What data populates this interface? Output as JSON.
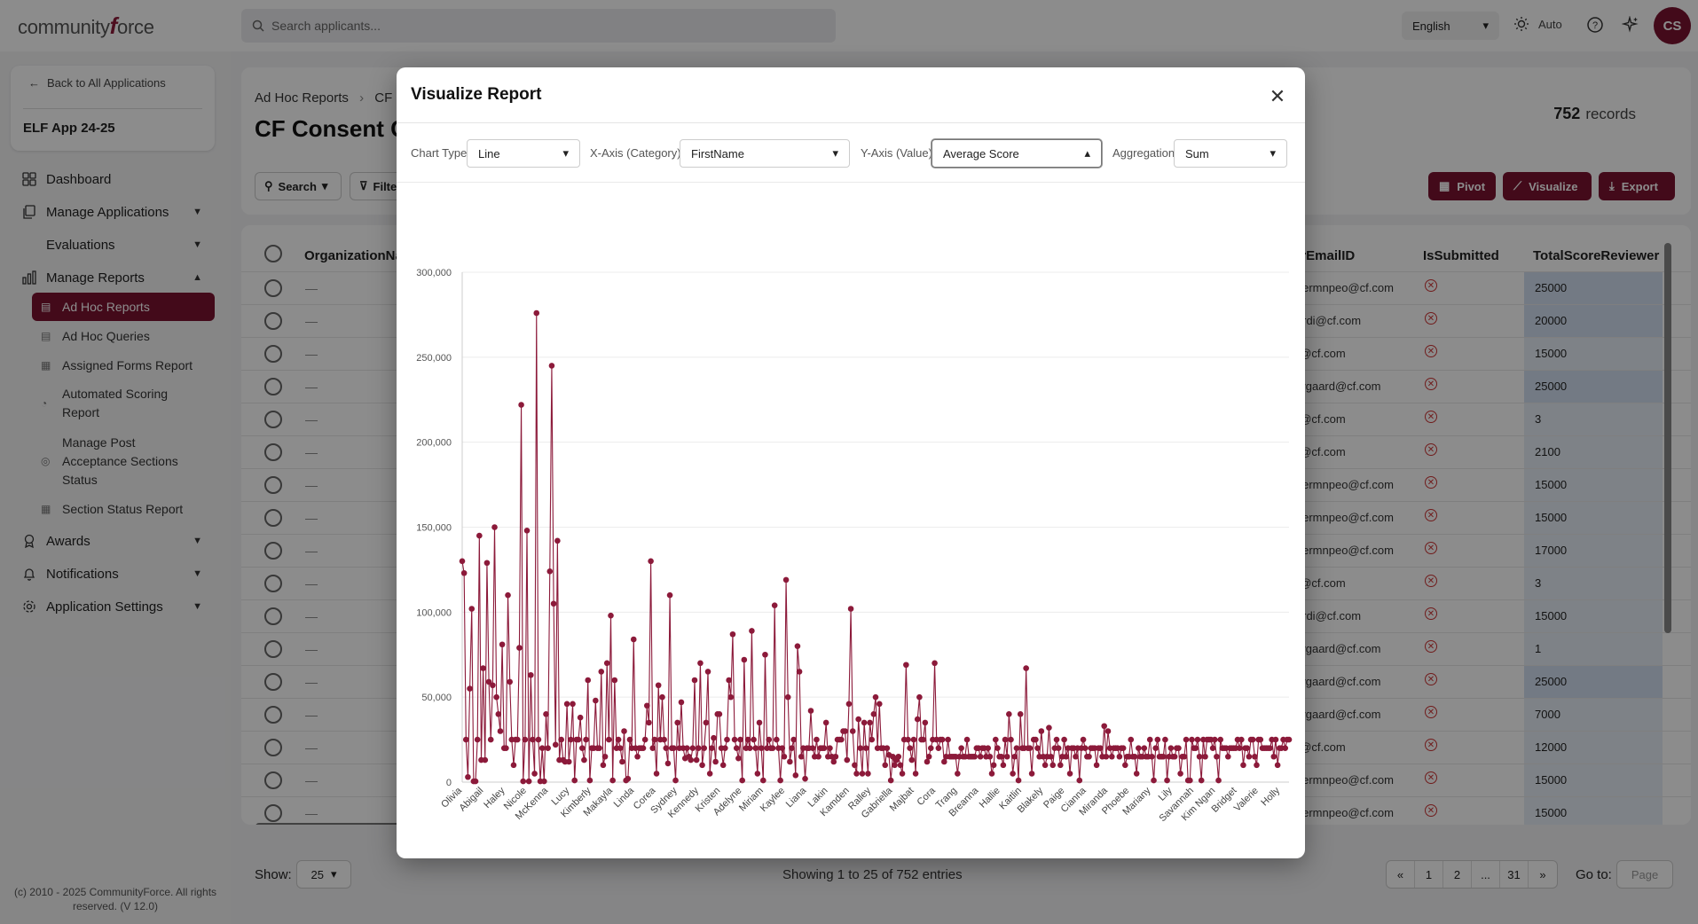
{
  "header": {
    "logo_text_a": "community",
    "logo_text_f": "f",
    "logo_text_b": "orce",
    "search_placeholder": "Search applicants...",
    "language": "English",
    "theme_mode": "Auto",
    "avatar_initials": "CS"
  },
  "sidebar": {
    "back_label": "Back to All Applications",
    "app_name": "ELF App 24-25",
    "items": [
      {
        "label": "Dashboard",
        "icon": "grid-icon"
      },
      {
        "label": "Manage Applications",
        "icon": "copy-icon"
      },
      {
        "label": "Evaluations",
        "icon": "star-icon"
      },
      {
        "label": "Manage Reports",
        "icon": "bar-chart-icon"
      },
      {
        "label": "Awards",
        "icon": "award-icon"
      },
      {
        "label": "Notifications",
        "icon": "bell-icon"
      },
      {
        "label": "Application Settings",
        "icon": "gear-icon"
      }
    ],
    "report_subitems": [
      {
        "label": "Ad Hoc Reports"
      },
      {
        "label": "Ad Hoc Queries"
      },
      {
        "label": "Assigned Forms Report"
      },
      {
        "label": "Automated Scoring Report"
      },
      {
        "label": "Manage Post Acceptance Sections Status"
      },
      {
        "label": "Section Status Report"
      }
    ],
    "copyright": "(c) 2010 - 2025 CommunityForce. All rights reserved. (V 12.0)"
  },
  "main": {
    "breadcrumb_root": "Ad Hoc Reports",
    "breadcrumb_current": "CF C",
    "title": "CF Consent Gi",
    "record_count": "752",
    "record_label": "records",
    "search_button": "Search",
    "filter_button": "Filte",
    "pivot_button": "Pivot",
    "visualize_button": "Visualize",
    "export_button": "Export",
    "columns": {
      "org": "OrganizationNa",
      "email": "erEmailID",
      "submitted": "IsSubmitted",
      "score": "TotalScoreReviewer"
    },
    "rows": [
      {
        "org": "—",
        "email": "hiermnpeo@cf.com",
        "score": "25000"
      },
      {
        "org": "—",
        "email": "birdi@cf.com",
        "score": "20000"
      },
      {
        "org": "—",
        "email": "n@cf.com",
        "score": "15000"
      },
      {
        "org": "—",
        "email": "nygaard@cf.com",
        "score": "25000"
      },
      {
        "org": "—",
        "email": "n@cf.com",
        "score": "3"
      },
      {
        "org": "—",
        "email": "n@cf.com",
        "score": "2100"
      },
      {
        "org": "—",
        "email": "hiermnpeo@cf.com",
        "score": "15000"
      },
      {
        "org": "—",
        "email": "hiermnpeo@cf.com",
        "score": "15000"
      },
      {
        "org": "—",
        "email": "hiermnpeo@cf.com",
        "score": "17000"
      },
      {
        "org": "—",
        "email": "n@cf.com",
        "score": "3"
      },
      {
        "org": "—",
        "email": "birdi@cf.com",
        "score": "15000"
      },
      {
        "org": "—",
        "email": "nygaard@cf.com",
        "score": "1"
      },
      {
        "org": "—",
        "email": "nygaard@cf.com",
        "score": "25000"
      },
      {
        "org": "—",
        "email": "nygaard@cf.com",
        "score": "7000"
      },
      {
        "org": "—",
        "email": "n@cf.com",
        "score": "12000"
      },
      {
        "org": "—",
        "email": "hiermnpeo@cf.com",
        "score": "15000"
      },
      {
        "org": "—",
        "email": "hiermnpeo@cf.com",
        "score": "15000"
      }
    ],
    "show_label": "Show:",
    "page_size": "25",
    "showing_text": "Showing 1 to 25 of 752 entries",
    "pages": [
      "«",
      "1",
      "2",
      "...",
      "31",
      "»"
    ],
    "goto_label": "Go to:",
    "goto_placeholder": "Page"
  },
  "modal": {
    "title": "Visualize Report",
    "chart_type_label": "Chart Type",
    "chart_type_value": "Line",
    "x_axis_label": "X-Axis (Category)",
    "x_axis_value": "FirstName",
    "y_axis_label": "Y-Axis (Value)",
    "y_axis_value": "Average Score",
    "aggregation_label": "Aggregation",
    "aggregation_value": "Sum"
  },
  "colors": {
    "brand": "#7a1330",
    "line": "#8c1a3a",
    "highlight_cell": "#d2dff0"
  },
  "chart_data": {
    "type": "line",
    "ylim": [
      0,
      300000
    ],
    "yticks": [
      0,
      50000,
      100000,
      150000,
      200000,
      250000,
      300000
    ],
    "ytick_labels": [
      "0",
      "50,000",
      "100,000",
      "150,000",
      "200,000",
      "250,000",
      "300,000"
    ],
    "xtick_labels": [
      "Olivia",
      "Abigail",
      "Haley",
      "Nicole",
      "McKenna",
      "Lucy",
      "Kimberly",
      "Makayla",
      "Linda",
      "Corea",
      "Sydney",
      "Kennedy",
      "Kristen",
      "Adelyne",
      "Miriam",
      "Kaylee",
      "Liana",
      "Lakin",
      "Kamden",
      "Ralley",
      "Gabriella",
      "Majbat",
      "Cora",
      "Trang",
      "Breanna",
      "Hallie",
      "Kaitlin",
      "Blakely",
      "Paige",
      "Cianna",
      "Miranda",
      "Phoebe",
      "Mariany",
      "Lily",
      "Savannah",
      "Kim Ngan",
      "Bridget",
      "Valerie",
      "Holly"
    ],
    "values": [
      130000,
      123000,
      25000,
      3000,
      55000,
      102000,
      500,
      500,
      25000,
      145000,
      13000,
      67000,
      13000,
      129000,
      59000,
      25000,
      57000,
      150000,
      50000,
      40000,
      30000,
      81000,
      20000,
      20000,
      110000,
      59000,
      25000,
      10000,
      25000,
      25000,
      79000,
      222000,
      500,
      25000,
      148000,
      500,
      63000,
      25000,
      5000,
      276000,
      25000,
      500,
      20000,
      500,
      40000,
      20000,
      124000,
      245000,
      105000,
      22000,
      142000,
      13000,
      25000,
      13000,
      12000,
      46000,
      12000,
      25000,
      46000,
      1000,
      25000,
      25000,
      38000,
      20000,
      13000,
      25000,
      60000,
      1000,
      20000,
      20000,
      48000,
      20000,
      20000,
      65000,
      10000,
      15000,
      70000,
      25000,
      98000,
      1000,
      60000,
      20000,
      25000,
      20000,
      12000,
      30000,
      1000,
      2000,
      25000,
      20000,
      84000,
      20000,
      15000,
      20000,
      20000,
      20000,
      25000,
      45000,
      35000,
      130000,
      20000,
      25000,
      5000,
      57000,
      25000,
      50000,
      25000,
      20000,
      11000,
      110000,
      20000,
      20000,
      1000,
      35000,
      20000,
      47000,
      20000,
      14000,
      20000,
      15000,
      13000,
      20000,
      60000,
      13000,
      20000,
      70000,
      10000,
      20000,
      35000,
      65000,
      5000,
      20000,
      26000,
      12000,
      40000,
      40000,
      20000,
      10000,
      20000,
      25000,
      60000,
      50000,
      87000,
      25000,
      20000,
      14000,
      25000,
      1000,
      72000,
      20000,
      25000,
      20000,
      89000,
      25000,
      20000,
      5000,
      35000,
      20000,
      1000,
      75000,
      20000,
      25000,
      20000,
      20000,
      104000,
      25000,
      20000,
      1000,
      20000,
      15000,
      119000,
      50000,
      12000,
      20000,
      25000,
      4000,
      80000,
      65000,
      15000,
      20000,
      2000,
      20000,
      20000,
      42000,
      20000,
      15000,
      25000,
      15000,
      20000,
      20000,
      20000,
      35000,
      15000,
      20000,
      15000,
      12000,
      15000,
      25000,
      25000,
      25000,
      30000,
      30000,
      13000,
      46000,
      102000,
      30000,
      10000,
      5000,
      37000,
      20000,
      5000,
      35000,
      20000,
      5000,
      35000,
      25000,
      40000,
      50000,
      20000,
      46000,
      20000,
      20000,
      10000,
      20000,
      16000,
      1000,
      15000,
      10000,
      13000,
      15000,
      10000,
      5000,
      25000,
      69000,
      25000,
      20000,
      13000,
      25000,
      5000,
      37000,
      50000,
      25000,
      25000,
      35000,
      12000,
      15000,
      20000,
      25000,
      70000,
      25000,
      20000,
      25000,
      25000,
      12000,
      15000,
      25000,
      15000,
      15000,
      15000,
      15000,
      5000,
      15000,
      20000,
      15000,
      15000,
      25000,
      15000,
      15000,
      15000,
      15000,
      20000,
      20000,
      15000,
      20000,
      20000,
      15000,
      20000,
      15000,
      5000,
      10000,
      25000,
      20000,
      15000,
      15000,
      10000,
      25000,
      15000,
      40000,
      25000,
      5000,
      15000,
      20000,
      1000,
      40000,
      20000,
      20000,
      67000,
      20000,
      20000,
      5000,
      25000,
      25000,
      20000,
      15000,
      30000,
      15000,
      10000,
      15000,
      32000,
      15000,
      10000,
      20000,
      25000,
      20000,
      10000,
      15000,
      25000,
      15000,
      20000,
      5000,
      20000,
      20000,
      15000,
      20000,
      1000,
      20000,
      25000,
      20000,
      15000,
      15000,
      20000,
      20000,
      20000,
      10000,
      20000,
      20000,
      15000,
      33000,
      15000,
      30000,
      20000,
      15000,
      20000,
      20000,
      20000,
      15000,
      20000,
      20000,
      10000,
      15000,
      15000,
      25000,
      15000,
      15000,
      5000,
      20000,
      15000,
      15000,
      20000,
      15000,
      15000,
      25000,
      15000,
      1000,
      20000,
      25000,
      15000,
      15000,
      15000,
      25000,
      1000,
      15000,
      20000,
      15000,
      15000,
      20000,
      20000,
      5000,
      15000,
      15000,
      25000,
      1000,
      1000,
      25000,
      20000,
      20000,
      25000,
      15000,
      1000,
      25000,
      15000,
      25000,
      25000,
      25000,
      20000,
      25000,
      15000,
      1000,
      25000,
      20000,
      20000,
      20000,
      15000,
      20000,
      20000,
      20000,
      20000,
      25000,
      20000,
      25000,
      10000,
      20000,
      20000,
      15000,
      25000,
      25000,
      15000,
      10000,
      25000,
      25000,
      20000,
      20000,
      20000,
      20000,
      20000,
      25000,
      15000,
      25000,
      10000,
      20000,
      20000,
      25000,
      20000,
      25000,
      25000
    ]
  }
}
